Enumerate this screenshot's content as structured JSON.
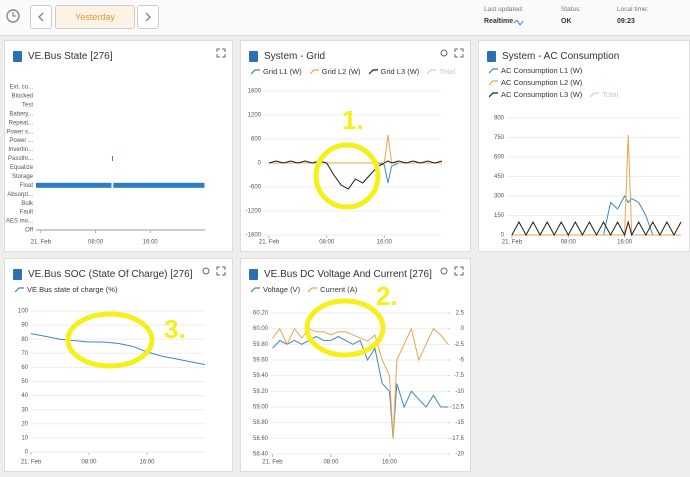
{
  "toolbar": {
    "period": "Yesterday",
    "last_updated_label": "Last updated:",
    "last_updated": "Realtime",
    "status_label": "Status:",
    "status": "OK",
    "local_time_label": "Local time:",
    "local_time": "09:23"
  },
  "annotations": [
    "1.",
    "2.",
    "3."
  ],
  "chart_data": [
    {
      "type": "state-timeline",
      "title": "VE.Bus State [276]",
      "categories": [
        "Ext. co...",
        "Blocked",
        "Test",
        "Battery...",
        "Repeat...",
        "Power s...",
        "Power ...",
        "Invertin...",
        "Passthr...",
        "Equalize",
        "Storage",
        "Float",
        "Absorpt...",
        "Bulk",
        "Fault",
        "AES mo...",
        "Off"
      ],
      "segments": [
        {
          "category": 11,
          "start": -0.7,
          "end": 10.4
        },
        {
          "category": 8,
          "start": 10.4,
          "end": 10.6
        },
        {
          "category": 11,
          "start": 10.6,
          "end": 24
        }
      ],
      "color": "#2d7cc4",
      "xlim": [
        -0.7,
        24
      ],
      "xticks": [
        {
          "value": 0,
          "label": "21. Feb"
        },
        {
          "value": 8,
          "label": "08:00"
        },
        {
          "value": 16,
          "label": "16:00"
        }
      ]
    },
    {
      "type": "line",
      "title": "System - Grid",
      "x": [
        0,
        1,
        2,
        3,
        4,
        5,
        6,
        7,
        8,
        9,
        10,
        11,
        12,
        13,
        14,
        15,
        16,
        16.5,
        17,
        18,
        19,
        20,
        21,
        22,
        23,
        24
      ],
      "series": [
        {
          "name": "Grid L1 (W)",
          "color": "#3e86c6",
          "values": [
            0,
            0,
            0,
            0,
            0,
            0,
            0,
            0,
            0,
            0,
            0,
            0,
            0,
            0,
            0,
            0,
            -50,
            -500,
            -80,
            0,
            0,
            0,
            0,
            0,
            0,
            0
          ]
        },
        {
          "name": "Grid L2 (W)",
          "color": "#e9a54b",
          "values": [
            0,
            0,
            0,
            0,
            0,
            0,
            0,
            0,
            0,
            0,
            0,
            0,
            0,
            0,
            0,
            0,
            0,
            700,
            0,
            0,
            0,
            0,
            0,
            0,
            0,
            0
          ]
        },
        {
          "name": "Grid L3 (W)",
          "color": "#1a1a1a",
          "values": [
            0,
            50,
            0,
            50,
            0,
            50,
            0,
            50,
            0,
            -300,
            -550,
            -650,
            -400,
            -500,
            -300,
            -100,
            0,
            50,
            0,
            50,
            0,
            50,
            0,
            50,
            0,
            50
          ]
        },
        {
          "name": "Total",
          "color": "#c3e0a8",
          "enabled": false
        }
      ],
      "xlim": [
        -0.7,
        24
      ],
      "ylim": [
        -1800,
        1800
      ],
      "yticks": [
        1800,
        1200,
        600,
        0,
        -600,
        -1200,
        -1800
      ],
      "xticks": [
        {
          "value": 0,
          "label": "21. Feb"
        },
        {
          "value": 8,
          "label": "08:00"
        },
        {
          "value": 16,
          "label": "16:00"
        }
      ]
    },
    {
      "type": "line",
      "title": "System - AC Consumption",
      "x": [
        0,
        1,
        2,
        3,
        4,
        5,
        6,
        7,
        8,
        9,
        10,
        11,
        12,
        13,
        14,
        15,
        16,
        16.5,
        17,
        18,
        19,
        20,
        21,
        22,
        23,
        24
      ],
      "series": [
        {
          "name": "AC Consumption L1 (W)",
          "color": "#3e86c6",
          "values": [
            0,
            0,
            0,
            0,
            0,
            0,
            0,
            0,
            0,
            0,
            0,
            0,
            0,
            0,
            250,
            200,
            300,
            250,
            280,
            250,
            150,
            0,
            0,
            0,
            0,
            0
          ]
        },
        {
          "name": "AC Consumption L2 (W)",
          "color": "#e9a54b",
          "values": [
            0,
            0,
            0,
            0,
            0,
            0,
            0,
            0,
            0,
            0,
            0,
            0,
            0,
            0,
            0,
            0,
            0,
            770,
            0,
            0,
            0,
            0,
            0,
            0,
            0,
            0
          ]
        },
        {
          "name": "AC Consumption L3 (W)",
          "color": "#1a1a1a",
          "values": [
            0,
            100,
            0,
            100,
            0,
            100,
            0,
            100,
            0,
            100,
            0,
            100,
            0,
            100,
            0,
            100,
            0,
            100,
            0,
            100,
            0,
            100,
            0,
            100,
            0,
            100
          ]
        },
        {
          "name": "Total",
          "color": "#c3e0a8",
          "enabled": false
        }
      ],
      "xlim": [
        -0.7,
        24
      ],
      "ylim": [
        0,
        900
      ],
      "yticks": [
        900,
        750,
        600,
        450,
        300,
        150,
        0
      ],
      "xticks": [
        {
          "value": 0,
          "label": "21. Feb"
        },
        {
          "value": 8,
          "label": "08:00"
        },
        {
          "value": 16,
          "label": "16:00"
        }
      ]
    },
    {
      "type": "line",
      "title": "VE.Bus SOC (State Of Charge) [276]",
      "x": [
        0,
        2,
        4,
        6,
        8,
        10,
        12,
        14,
        16,
        18,
        20,
        22,
        24
      ],
      "series": [
        {
          "name": "VE.Bus state of charge (%)",
          "color": "#3e86c6",
          "values": [
            84,
            82,
            80,
            79,
            78,
            78,
            77,
            75,
            71,
            68,
            66,
            64,
            62
          ]
        }
      ],
      "xlim": [
        0,
        24
      ],
      "ylim": [
        0,
        100
      ],
      "yticks": [
        100,
        90,
        80,
        70,
        60,
        50,
        40,
        30,
        20,
        10,
        0
      ],
      "xticks": [
        {
          "value": 0,
          "label": "21. Feb"
        },
        {
          "value": 8,
          "label": "08:00"
        },
        {
          "value": 16,
          "label": "16:00"
        }
      ]
    },
    {
      "type": "line",
      "title": "VE.Bus DC Voltage And Current [276]",
      "x": [
        0,
        1,
        2,
        3,
        4,
        5,
        6,
        7,
        8,
        9,
        10,
        11,
        12,
        13,
        14,
        15,
        16,
        16.5,
        17,
        18,
        19,
        20,
        21,
        22,
        23,
        24
      ],
      "series": [
        {
          "name": "Voltage (V)",
          "color": "#3e86c6",
          "values": [
            59.75,
            59.85,
            59.8,
            59.85,
            59.8,
            59.85,
            59.9,
            59.85,
            59.85,
            59.9,
            59.85,
            59.8,
            59.85,
            59.6,
            59.75,
            59.3,
            59.2,
            58.6,
            59.3,
            59.0,
            59.2,
            59.1,
            59.0,
            59.15,
            59.0,
            59.0
          ]
        },
        {
          "name": "Current (A)",
          "color": "#e9a54b",
          "axis": "y2",
          "values": [
            -1.5,
            0,
            -2.5,
            0,
            -1.5,
            0,
            -0.5,
            -0.5,
            -1,
            -0.5,
            -0.5,
            -1,
            -1.5,
            -2,
            -1,
            -5,
            -7.5,
            -17.5,
            -5,
            -2.5,
            0,
            -5,
            -2.5,
            0,
            -1,
            -2.5
          ]
        }
      ],
      "xlim": [
        -0.2,
        24
      ],
      "ylim": [
        58.4,
        60.2
      ],
      "yticks": [
        {
          "value": 60.2,
          "label": "60.20"
        },
        {
          "value": 60.0,
          "label": "60.00"
        },
        {
          "value": 59.8,
          "label": "59.80"
        },
        {
          "value": 59.6,
          "label": "59.60"
        },
        {
          "value": 59.4,
          "label": "59.40"
        },
        {
          "value": 59.2,
          "label": "59.20"
        },
        {
          "value": 59.0,
          "label": "59.00"
        },
        {
          "value": 58.8,
          "label": "58.80"
        },
        {
          "value": 58.6,
          "label": "58.60"
        },
        {
          "value": 58.4,
          "label": "58.40"
        }
      ],
      "y2lim": [
        -20,
        2.5
      ],
      "y2ticks": [
        2.5,
        0,
        -2.5,
        -5,
        -7.5,
        -10,
        -12.5,
        -15,
        -17.5,
        -20
      ],
      "xticks": [
        {
          "value": 0,
          "label": "21. Feb"
        },
        {
          "value": 8,
          "label": "08:00"
        },
        {
          "value": 16,
          "label": "16:00"
        }
      ]
    }
  ]
}
